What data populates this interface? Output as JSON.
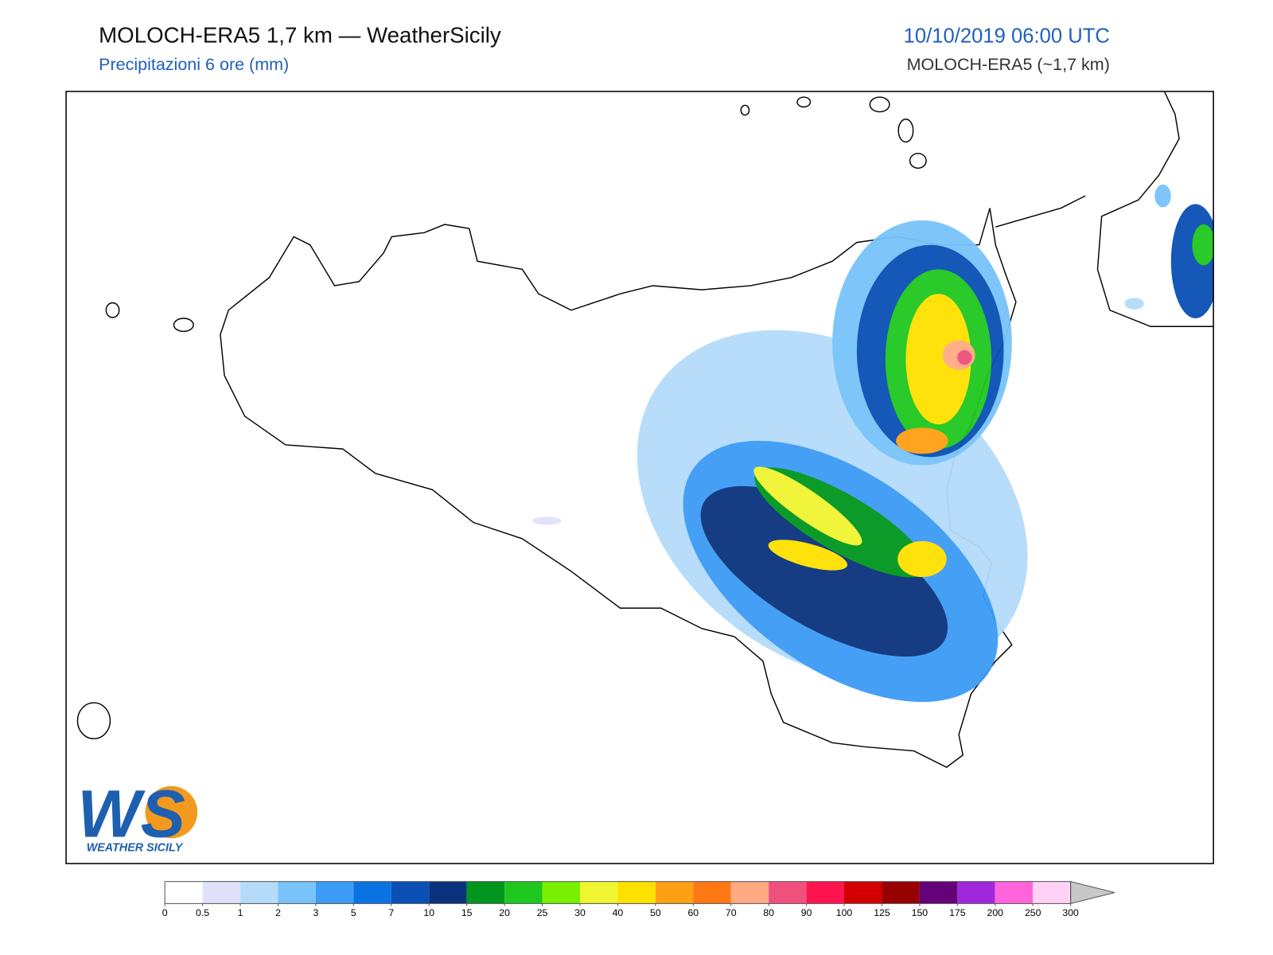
{
  "header": {
    "title": "MOLOCH-ERA5 1,7 km — WeatherSicily",
    "subtitle": "Precipitazioni 6 ore (mm)",
    "date": "10/10/2019 06:00 UTC",
    "model": "MOLOCH-ERA5 (~1,7 km)"
  },
  "logo": {
    "mark": "WS",
    "name": "WEATHER SICILY"
  },
  "colorbar": {
    "ticks": [
      0,
      0.5,
      1,
      2,
      3,
      5,
      7,
      10,
      15,
      20,
      25,
      30,
      40,
      50,
      60,
      70,
      80,
      90,
      100,
      125,
      150,
      175,
      200,
      250,
      300
    ],
    "colors": [
      "#ffffff",
      "#e1e1fa",
      "#b4dcfa",
      "#78c3fa",
      "#3c9bf5",
      "#0a73e1",
      "#0a50b4",
      "#0a327d",
      "#00961e",
      "#1ec81e",
      "#78f000",
      "#f0f532",
      "#ffe100",
      "#ffa014",
      "#ff7814",
      "#ffaa82",
      "#f0507d",
      "#ff1450",
      "#d20000",
      "#960000",
      "#640078",
      "#a028dc",
      "#ff64dc",
      "#ffd2f5"
    ]
  }
}
